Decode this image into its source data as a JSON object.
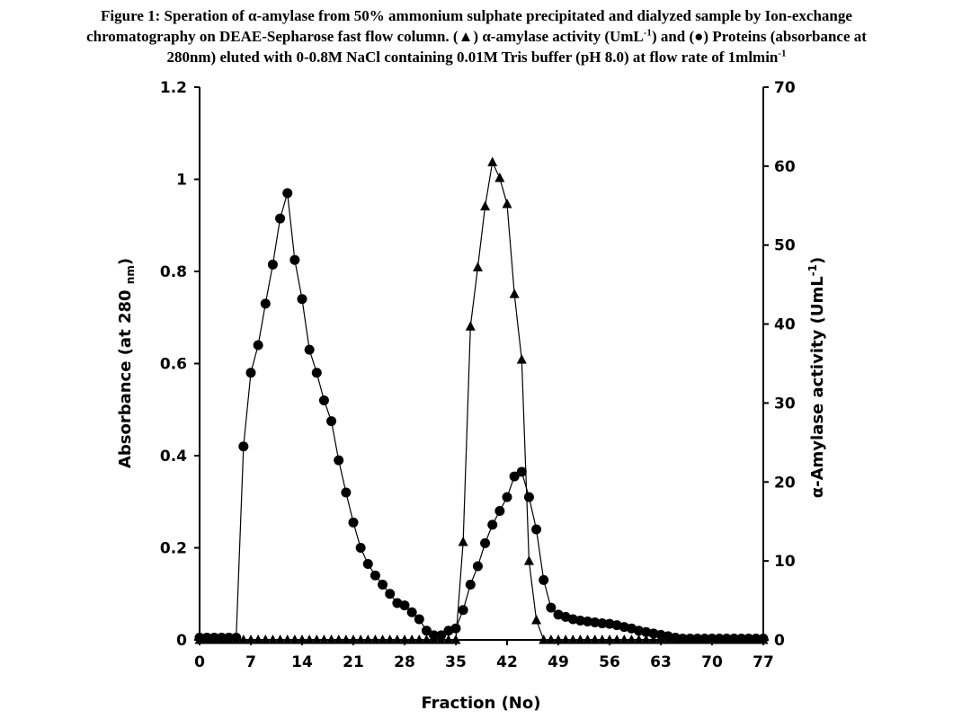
{
  "chart_data": {
    "type": "line",
    "title_parts": {
      "line1": "Figure 1: Speration of α-amylase from 50% ammonium sulphate precipitated and dialyzed sample by Ion-exchange",
      "line2a": "chromatography on DEAE-Sepharose fast flow column. (▲) α-amylase activity (UmL",
      "line2sup": "-1",
      "line2b": ") and (●) Proteins (absorbance at",
      "line3a": "280nm) eluted with 0-0.8M NaCl containing 0.01M Tris buffer (pH 8.0) at flow rate of 1mlmin",
      "line3sup": "-1"
    },
    "xlabel": "Fraction (No)",
    "ylabel_left": {
      "main": "Absorbance (at 280 ",
      "sub": "nm",
      "end": ")"
    },
    "ylabel_right": {
      "main": "α-Amylase activity (UmL",
      "sup": "-1",
      "end": ")"
    },
    "xlim": [
      0,
      77
    ],
    "ylim_left": [
      0,
      1.2
    ],
    "ylim_right": [
      0,
      70
    ],
    "x_ticks": [
      "0",
      "7",
      "14",
      "21",
      "28",
      "35",
      "42",
      "49",
      "56",
      "63",
      "70",
      "77"
    ],
    "y_left_ticks": [
      "0",
      "0.2",
      "0.4",
      "0.6",
      "0.8",
      "1",
      "1.2"
    ],
    "y_right_ticks": [
      "0",
      "10",
      "20",
      "30",
      "40",
      "50",
      "60",
      "70"
    ],
    "grid": false,
    "x": [
      0,
      1,
      2,
      3,
      4,
      5,
      6,
      7,
      8,
      9,
      10,
      11,
      12,
      13,
      14,
      15,
      16,
      17,
      18,
      19,
      20,
      21,
      22,
      23,
      24,
      25,
      26,
      27,
      28,
      29,
      30,
      31,
      32,
      33,
      34,
      35,
      36,
      37,
      38,
      39,
      40,
      41,
      42,
      43,
      44,
      45,
      46,
      47,
      48,
      49,
      50,
      51,
      52,
      53,
      54,
      55,
      56,
      57,
      58,
      59,
      60,
      61,
      62,
      63,
      64,
      65,
      66,
      67,
      68,
      69,
      70,
      71,
      72,
      73,
      74,
      75,
      76,
      77
    ],
    "series": [
      {
        "name": "Proteins (absorbance at 280nm)",
        "marker": "circle",
        "axis": "left",
        "values": [
          0.005,
          0.005,
          0.005,
          0.005,
          0.005,
          0.005,
          0.42,
          0.58,
          0.64,
          0.73,
          0.815,
          0.915,
          0.97,
          0.825,
          0.74,
          0.63,
          0.58,
          0.52,
          0.475,
          0.39,
          0.32,
          0.255,
          0.2,
          0.165,
          0.14,
          0.12,
          0.1,
          0.08,
          0.075,
          0.06,
          0.045,
          0.02,
          0.01,
          0.01,
          0.02,
          0.025,
          0.065,
          0.12,
          0.16,
          0.21,
          0.25,
          0.28,
          0.31,
          0.355,
          0.365,
          0.31,
          0.24,
          0.13,
          0.07,
          0.055,
          0.05,
          0.045,
          0.042,
          0.04,
          0.038,
          0.036,
          0.035,
          0.032,
          0.028,
          0.025,
          0.02,
          0.017,
          0.014,
          0.011,
          0.008,
          0.005,
          0.003,
          0.003,
          0.003,
          0.003,
          0.003,
          0.003,
          0.003,
          0.003,
          0.003,
          0.003,
          0.003,
          0.003
        ]
      },
      {
        "name": "α-amylase activity (UmL-1)",
        "marker": "triangle",
        "axis": "right",
        "values": [
          0,
          0,
          0,
          0,
          0,
          0,
          0,
          0,
          0,
          0,
          0,
          0,
          0,
          0,
          0,
          0,
          0,
          0,
          0,
          0,
          0,
          0,
          0,
          0,
          0,
          0,
          0,
          0,
          0,
          0,
          0,
          0,
          0,
          0,
          0,
          0,
          12.4,
          39.7,
          47.2,
          54.9,
          60.5,
          58.5,
          55.2,
          43.8,
          35.5,
          10,
          2.5,
          0,
          0,
          0,
          0,
          0,
          0,
          0,
          0,
          0,
          0,
          0,
          0,
          0,
          0,
          0,
          0,
          0,
          0,
          0,
          0,
          0,
          0,
          0,
          0,
          0,
          0,
          0,
          0,
          0,
          0,
          0
        ]
      }
    ]
  }
}
